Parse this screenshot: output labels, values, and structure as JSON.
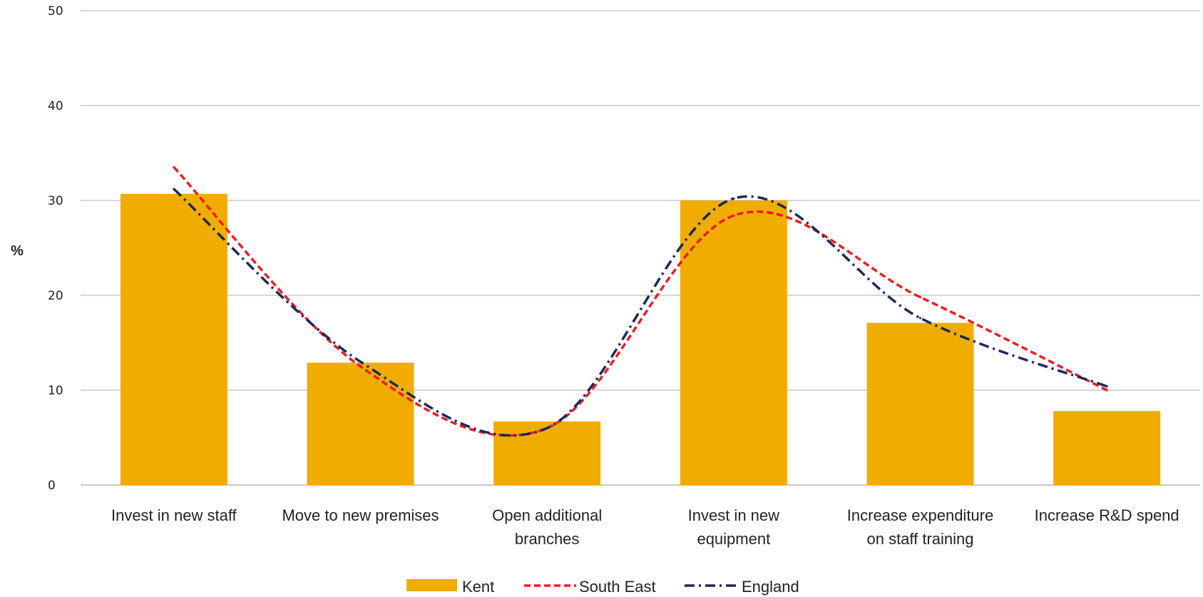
{
  "chart_data": {
    "type": "bar",
    "title": "",
    "xlabel": "",
    "ylabel": "%",
    "ylim": [
      0,
      50
    ],
    "yticks": [
      0,
      10,
      20,
      30,
      40,
      50
    ],
    "grid": true,
    "legend_position": "bottom",
    "categories": [
      [
        "Invest in new staff"
      ],
      [
        "Move to new premises"
      ],
      [
        "Open additional",
        "branches"
      ],
      [
        "Invest in new",
        "equipment"
      ],
      [
        "Increase expenditure",
        "on staff training"
      ],
      [
        "Increase R&D spend"
      ]
    ],
    "series": [
      {
        "name": "Kent",
        "kind": "bar",
        "color": "#F0AD00",
        "values": [
          30.7,
          12.9,
          6.7,
          30.0,
          17.1,
          7.8
        ]
      },
      {
        "name": "South East",
        "kind": "line",
        "style": "dashed",
        "color": "#EE1C25",
        "values": [
          33.5,
          12.5,
          6.0,
          28.4,
          19.8,
          10.0
        ]
      },
      {
        "name": "England",
        "kind": "line",
        "style": "dash-dot",
        "color": "#1A2A5A",
        "values": [
          31.2,
          13.0,
          6.0,
          30.2,
          17.6,
          10.4
        ]
      }
    ]
  }
}
